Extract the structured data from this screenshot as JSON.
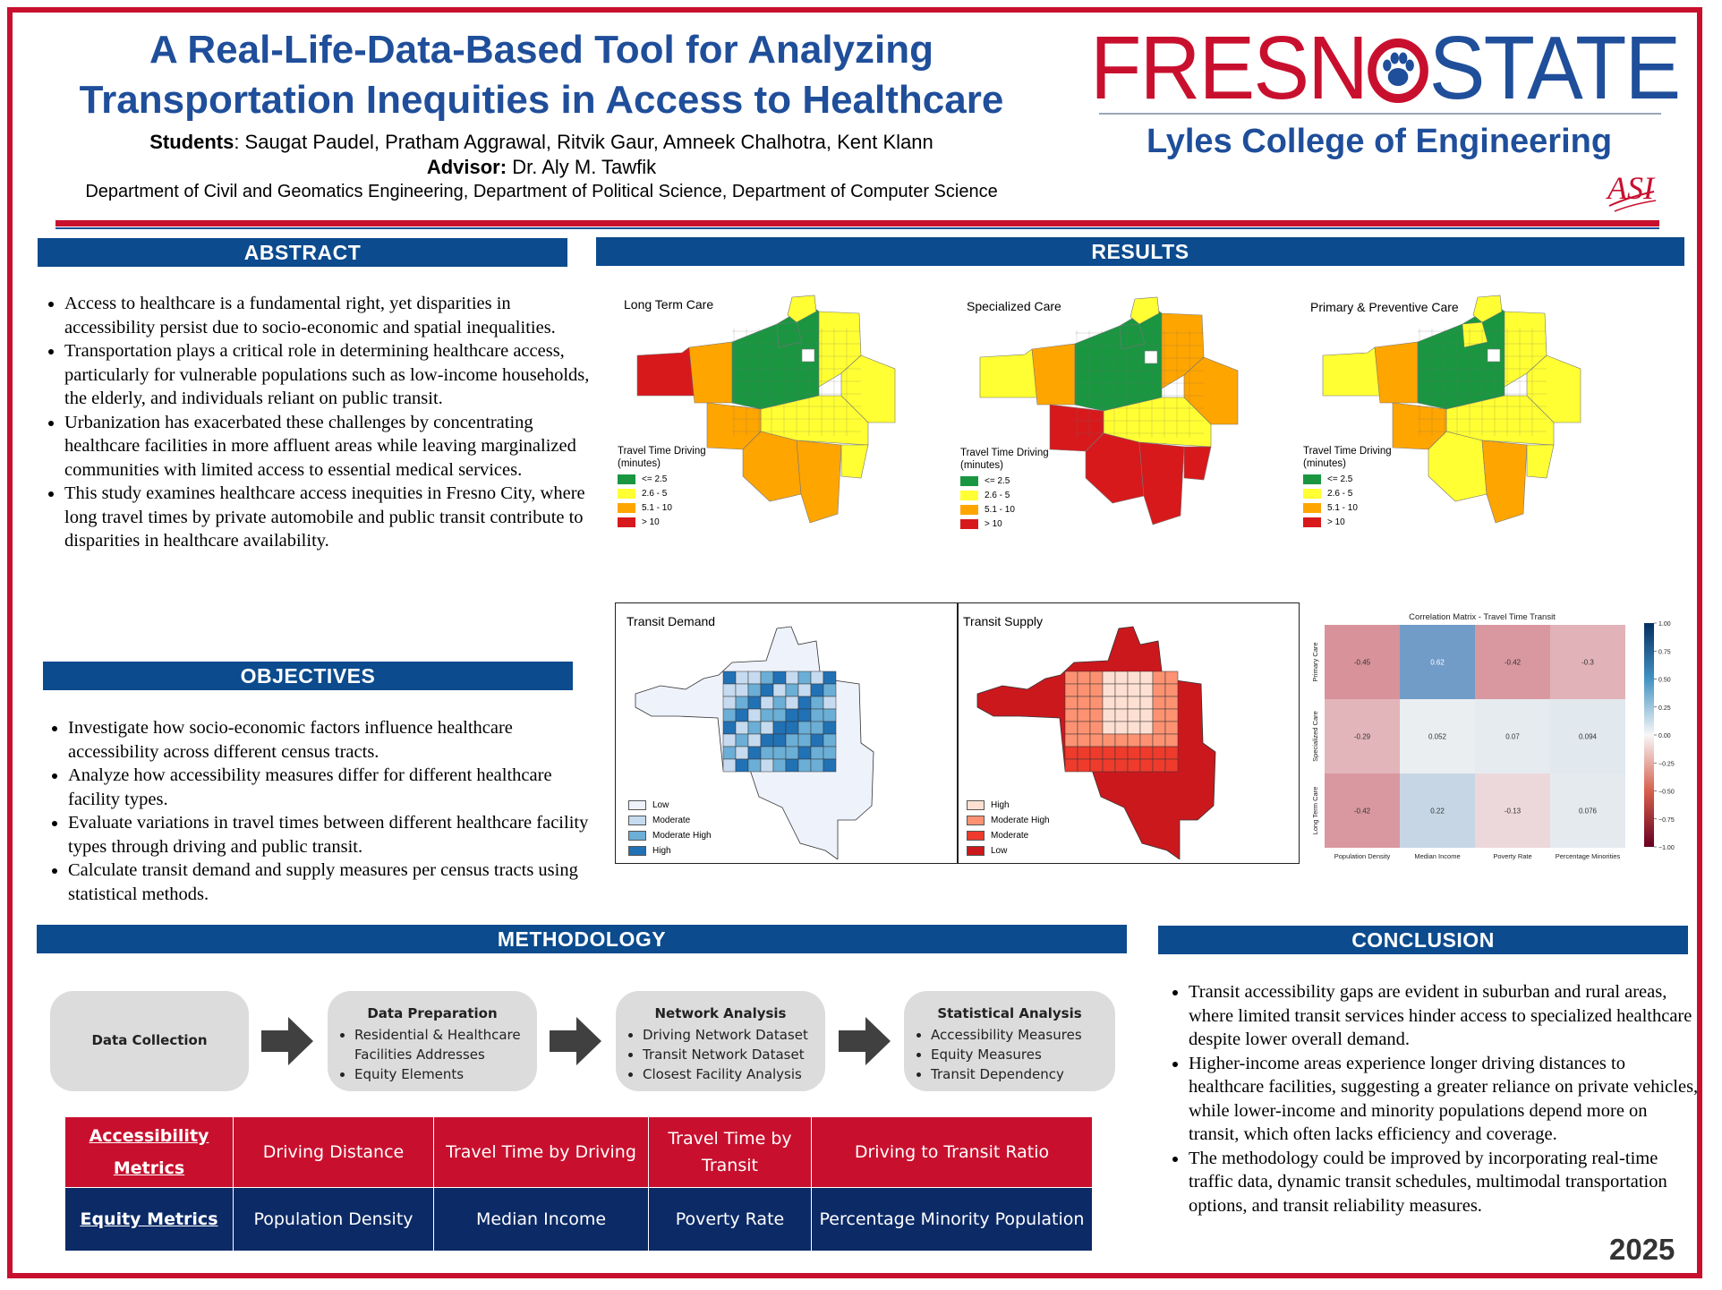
{
  "header": {
    "title_line1": "A Real-Life-Data-Based Tool for Analyzing",
    "title_line2": "Transportation Inequities in Access to Healthcare",
    "students_label": "Students",
    "students": ": Saugat Paudel, Pratham Aggrawal, Ritvik Gaur, Amneek Chalhotra, Kent Klann",
    "advisor_label": "Advisor:",
    "advisor": " Dr. Aly M. Tawfik",
    "departments": "Department of Civil and Geomatics Engineering, Department of Political Science, Department of Computer Science",
    "logo_fresno_left": "FRESN",
    "logo_state": "STATE",
    "college": "Lyles College of Engineering",
    "asi_logo": "ASI",
    "brand_red": "#c8102e",
    "brand_blue": "#1f4e9a"
  },
  "abstract": {
    "heading": "ABSTRACT",
    "items": [
      "Access to healthcare is a fundamental right, yet disparities in accessibility persist due to socio-economic and spatial inequalities.",
      "Transportation plays a critical role in determining healthcare access, particularly for vulnerable populations such as low-income households, the elderly, and individuals reliant on public transit.",
      "Urbanization has exacerbated these challenges by concentrating healthcare facilities in more affluent areas while leaving marginalized communities with limited access to essential medical services.",
      "This study examines healthcare access inequities in Fresno City, where long travel times by private automobile and public transit contribute to disparities in healthcare availability."
    ]
  },
  "objectives": {
    "heading": "OBJECTIVES",
    "items": [
      "Investigate how socio-economic factors influence healthcare accessibility across different census tracts.",
      "Analyze how accessibility measures differ for different healthcare facility types.",
      "Evaluate variations in travel times between different healthcare facility types through driving and public transit.",
      "Calculate transit demand and supply measures per census tracts using statistical methods."
    ]
  },
  "results": {
    "heading": "RESULTS",
    "driving_maps": [
      {
        "title": "Long Term Care"
      },
      {
        "title": "Specialized Care"
      },
      {
        "title": "Primary & Preventive Care"
      }
    ],
    "driving_legend": {
      "title_line1": "Travel Time Driving",
      "title_line2": "(minutes)",
      "items": [
        "<= 2.5",
        "2.6 - 5",
        "5.1 - 10",
        "> 10"
      ],
      "colors": [
        "#1a9641",
        "#ffff33",
        "#ffa500",
        "#d7191c"
      ]
    },
    "demand_map": {
      "title": "Transit Demand",
      "legend": [
        "Low",
        "Moderate",
        "Moderate High",
        "High"
      ],
      "colors": [
        "#eef2fb",
        "#c6dbef",
        "#6baed6",
        "#2171b5"
      ]
    },
    "supply_map": {
      "title": "Transit Supply",
      "legend": [
        "High",
        "Moderate High",
        "Moderate",
        "Low"
      ],
      "colors": [
        "#fee0d2",
        "#fc9272",
        "#ef3b2c",
        "#cb181d"
      ]
    }
  },
  "chart_data": {
    "type": "heatmap",
    "title": "Correlation Matrix - Travel Time Transit",
    "rows": [
      "Primary Care",
      "Specialized Care",
      "Long Term Care"
    ],
    "columns": [
      "Population Density",
      "Median Income",
      "Poverty Rate",
      "Percentage Minorities"
    ],
    "values": [
      [
        -0.45,
        0.62,
        -0.42,
        -0.3
      ],
      [
        -0.29,
        0.052,
        0.07,
        0.094
      ],
      [
        -0.42,
        0.22,
        -0.13,
        0.076
      ]
    ],
    "colorbar_range": [
      -1.0,
      1.0
    ],
    "colorbar_ticks": [
      "1.00",
      "0.75",
      "0.50",
      "0.25",
      "0.00",
      "−0.25",
      "−0.50",
      "−0.75",
      "−1.00"
    ]
  },
  "methodology": {
    "heading": "METHODOLOGY",
    "steps": [
      {
        "title": "Data Collection",
        "items": []
      },
      {
        "title": "Data Preparation",
        "items": [
          "Residential & Healthcare Facilities Addresses",
          "Equity Elements"
        ]
      },
      {
        "title": "Network Analysis",
        "items": [
          "Driving Network Dataset",
          "Transit Network Dataset",
          "Closest Facility Analysis"
        ]
      },
      {
        "title": "Statistical Analysis",
        "items": [
          "Accessibility Measures",
          "Equity Measures",
          "Transit Dependency"
        ]
      }
    ],
    "accessibility_row": {
      "label_line1": "Accessibility",
      "label_line2": "Metrics",
      "cells": [
        "Driving Distance",
        "Travel Time by Driving",
        "Travel Time by Transit",
        "Driving to Transit Ratio"
      ]
    },
    "equity_row": {
      "label": "Equity Metrics",
      "cells": [
        "Population Density",
        "Median Income",
        "Poverty Rate",
        "Percentage Minority Population"
      ]
    }
  },
  "conclusion": {
    "heading": "CONCLUSION",
    "items": [
      "Transit accessibility gaps are evident in suburban and rural areas, where limited transit services hinder access to specialized healthcare despite lower overall demand.",
      "Higher-income areas experience longer driving distances to healthcare facilities, suggesting a greater reliance on private vehicles, while lower-income and minority populations depend more on transit, which often lacks efficiency and coverage.",
      "The methodology could be improved by incorporating real-time traffic data, dynamic transit schedules, multimodal transportation options, and transit reliability measures."
    ]
  },
  "footer": {
    "year": "2025"
  }
}
